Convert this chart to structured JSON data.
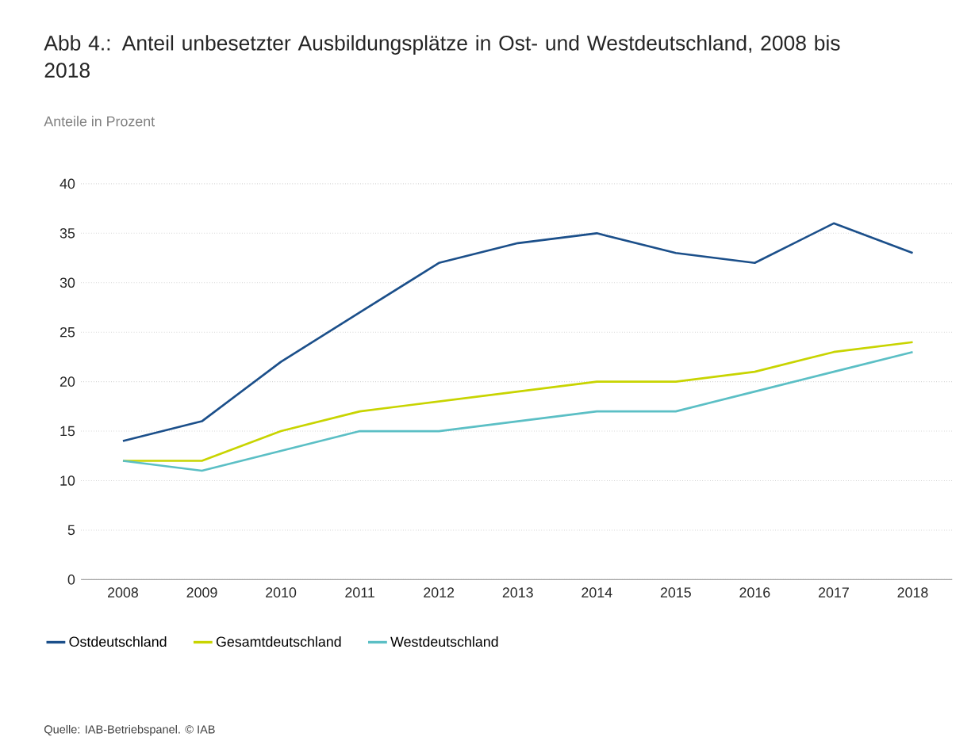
{
  "chart_data": {
    "type": "line",
    "title": "Abb 4.: Anteil unbesetzter Ausbildungsplätze in Ost- und Westdeutschland, 2008 bis 2018",
    "subtitle": "Anteile in Prozent",
    "categories": [
      "2008",
      "2009",
      "2010",
      "2011",
      "2012",
      "2013",
      "2014",
      "2015",
      "2016",
      "2017",
      "2018"
    ],
    "series": [
      {
        "name": "Ostdeutschland",
        "color": "#1b4f8a",
        "values": [
          14,
          16,
          22,
          27,
          32,
          34,
          35,
          33,
          32,
          36,
          33
        ]
      },
      {
        "name": "Gesamtdeutschland",
        "color": "#c8d400",
        "values": [
          12,
          12,
          15,
          17,
          18,
          19,
          20,
          20,
          21,
          23,
          24
        ]
      },
      {
        "name": "Westdeutschland",
        "color": "#5bbfc5",
        "values": [
          12,
          11,
          13,
          15,
          15,
          16,
          17,
          17,
          19,
          21,
          23
        ]
      }
    ],
    "ylim": [
      0,
      40
    ],
    "yticks": [
      0,
      5,
      10,
      15,
      20,
      25,
      30,
      35,
      40
    ],
    "grid": "y",
    "legend": "bottom",
    "marker": "none",
    "line_style": "solid",
    "annotations": [
      "Quelle: IAB-Betriebspanel. © IAB"
    ]
  }
}
